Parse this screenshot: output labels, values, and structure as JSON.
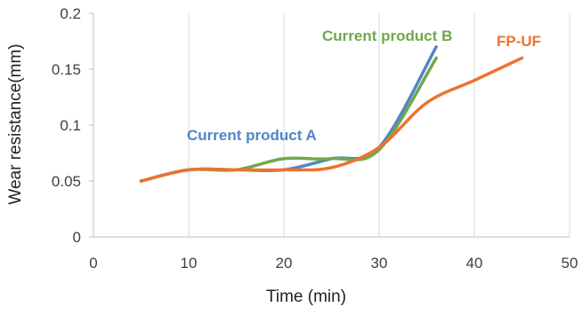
{
  "chart_data": {
    "type": "line",
    "title": "",
    "xlabel": "Time (min)",
    "ylabel": "Wear resistance(mm)",
    "xlim": [
      0,
      50
    ],
    "ylim": [
      0,
      0.2
    ],
    "xticks": [
      0,
      10,
      20,
      30,
      40,
      50
    ],
    "yticks": [
      0,
      0.05,
      0.1,
      0.15,
      0.2
    ],
    "ytick_labels": [
      "0",
      "0.05",
      "0.1",
      "0.15",
      "0.2"
    ],
    "grid": "vertical",
    "legend": "inline labels",
    "series": [
      {
        "name": "Current product A",
        "color": "#4F86C6",
        "x": [
          5,
          10,
          15,
          20,
          25,
          30,
          36
        ],
        "y": [
          0.05,
          0.06,
          0.06,
          0.06,
          0.07,
          0.08,
          0.17
        ]
      },
      {
        "name": "Current product B",
        "color": "#70A84A",
        "x": [
          5,
          10,
          15,
          20,
          25,
          30,
          36
        ],
        "y": [
          0.05,
          0.06,
          0.06,
          0.07,
          0.07,
          0.078,
          0.16
        ]
      },
      {
        "name": "FP-UF",
        "color": "#EC7330",
        "x": [
          5,
          10,
          15,
          20,
          25,
          30,
          35,
          40,
          45
        ],
        "y": [
          0.05,
          0.06,
          0.06,
          0.06,
          0.062,
          0.08,
          0.12,
          0.14,
          0.16
        ]
      }
    ]
  }
}
